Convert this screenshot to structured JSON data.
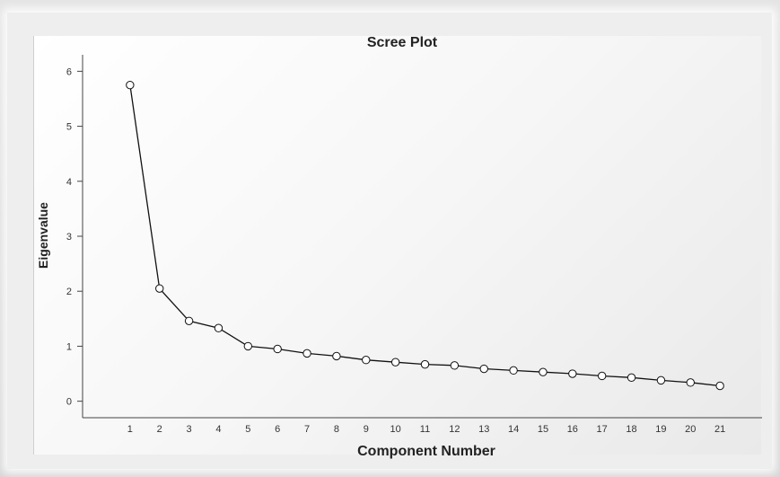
{
  "chart_data": {
    "type": "line",
    "title": "Scree Plot",
    "xlabel": "Component Number",
    "ylabel": "Eigenvalue",
    "x": [
      1,
      2,
      3,
      4,
      5,
      6,
      7,
      8,
      9,
      10,
      11,
      12,
      13,
      14,
      15,
      16,
      17,
      18,
      19,
      20,
      21
    ],
    "values": [
      5.75,
      2.05,
      1.46,
      1.33,
      1.0,
      0.95,
      0.87,
      0.82,
      0.75,
      0.71,
      0.67,
      0.65,
      0.59,
      0.56,
      0.53,
      0.5,
      0.46,
      0.43,
      0.38,
      0.34,
      0.28
    ],
    "xlim": [
      0,
      22
    ],
    "ylim": [
      -0.3,
      6.3
    ],
    "yticks": [
      "0",
      "1",
      "2",
      "3",
      "4",
      "5",
      "6"
    ],
    "xticks": [
      "1",
      "2",
      "3",
      "4",
      "5",
      "6",
      "7",
      "8",
      "9",
      "10",
      "11",
      "12",
      "13",
      "14",
      "15",
      "16",
      "17",
      "18",
      "19",
      "20",
      "21"
    ],
    "grid": false,
    "colors": {
      "line": "#111111",
      "marker_fill": "#ffffff",
      "axis": "#444444"
    }
  }
}
